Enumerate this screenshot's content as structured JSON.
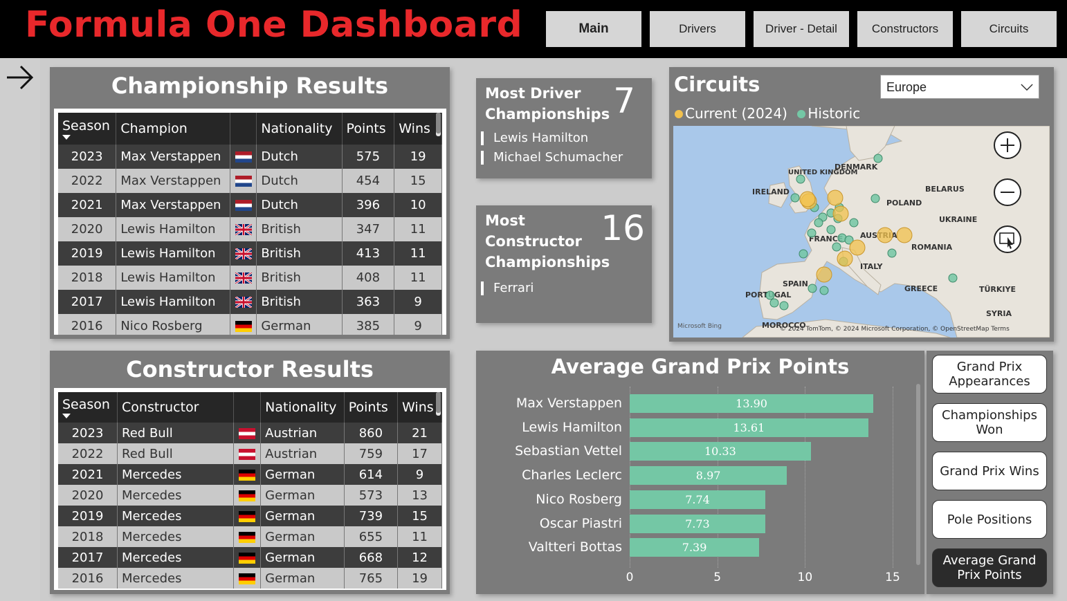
{
  "header": {
    "title": "Formula One Dashboard",
    "nav": [
      "Main",
      "Drivers",
      "Driver - Detail",
      "Constructors",
      "Circuits"
    ],
    "active_nav": "Main"
  },
  "championship": {
    "title": "Championship Results",
    "columns": [
      "Season",
      "Champion",
      "",
      "Nationality",
      "Points",
      "Wins"
    ],
    "rows": [
      {
        "season": "2023",
        "name": "Max Verstappen",
        "flag": "nl",
        "nationality": "Dutch",
        "points": "575",
        "wins": "19"
      },
      {
        "season": "2022",
        "name": "Max Verstappen",
        "flag": "nl",
        "nationality": "Dutch",
        "points": "454",
        "wins": "15"
      },
      {
        "season": "2021",
        "name": "Max Verstappen",
        "flag": "nl",
        "nationality": "Dutch",
        "points": "396",
        "wins": "10"
      },
      {
        "season": "2020",
        "name": "Lewis Hamilton",
        "flag": "gb",
        "nationality": "British",
        "points": "347",
        "wins": "11"
      },
      {
        "season": "2019",
        "name": "Lewis Hamilton",
        "flag": "gb",
        "nationality": "British",
        "points": "413",
        "wins": "11"
      },
      {
        "season": "2018",
        "name": "Lewis Hamilton",
        "flag": "gb",
        "nationality": "British",
        "points": "408",
        "wins": "11"
      },
      {
        "season": "2017",
        "name": "Lewis Hamilton",
        "flag": "gb",
        "nationality": "British",
        "points": "363",
        "wins": "9"
      },
      {
        "season": "2016",
        "name": "Nico Rosberg",
        "flag": "de",
        "nationality": "German",
        "points": "385",
        "wins": "9"
      }
    ]
  },
  "constructor": {
    "title": "Constructor Results",
    "columns": [
      "Season",
      "Constructor",
      "",
      "Nationality",
      "Points",
      "Wins"
    ],
    "rows": [
      {
        "season": "2023",
        "name": "Red Bull",
        "flag": "at",
        "nationality": "Austrian",
        "points": "860",
        "wins": "21"
      },
      {
        "season": "2022",
        "name": "Red Bull",
        "flag": "at",
        "nationality": "Austrian",
        "points": "759",
        "wins": "17"
      },
      {
        "season": "2021",
        "name": "Mercedes",
        "flag": "de",
        "nationality": "German",
        "points": "614",
        "wins": "9"
      },
      {
        "season": "2020",
        "name": "Mercedes",
        "flag": "de",
        "nationality": "German",
        "points": "573",
        "wins": "13"
      },
      {
        "season": "2019",
        "name": "Mercedes",
        "flag": "de",
        "nationality": "German",
        "points": "739",
        "wins": "15"
      },
      {
        "season": "2018",
        "name": "Mercedes",
        "flag": "de",
        "nationality": "German",
        "points": "655",
        "wins": "11"
      },
      {
        "season": "2017",
        "name": "Mercedes",
        "flag": "de",
        "nationality": "German",
        "points": "668",
        "wins": "12"
      },
      {
        "season": "2016",
        "name": "Mercedes",
        "flag": "de",
        "nationality": "German",
        "points": "765",
        "wins": "19"
      }
    ]
  },
  "kpi_driver": {
    "title": "Most Driver Championships",
    "value": "7",
    "items": [
      "Lewis Hamilton",
      "Michael Schumacher"
    ]
  },
  "kpi_constructor": {
    "title": "Most Constructor Championships",
    "value": "16",
    "items": [
      "Ferrari"
    ]
  },
  "circuits": {
    "title": "Circuits",
    "region": "Europe",
    "legend_current": "Current (2024)",
    "legend_historic": "Historic",
    "color_current": "#f2c14e",
    "color_historic": "#74c7a5",
    "map_labels": [
      "DENMARK",
      "UNITED KINGDOM",
      "IRELAND",
      "BELARUS",
      "POLAND",
      "UKRAINE",
      "FRANCE",
      "AUSTRIA",
      "ROMANIA",
      "ITALY",
      "SPAIN",
      "PORTUGAL",
      "GREECE",
      "TÜRKIYE",
      "SYRIA",
      "MOROCCO"
    ],
    "attribution": "© 2024 TomTom, © 2024 Microsoft Corporation, © OpenStreetMap  Terms",
    "bing": "Microsoft Bing"
  },
  "avg_points": {
    "title": "Average Grand Prix Points",
    "bar_color": "#74c7a5"
  },
  "chart_data": {
    "type": "bar",
    "orientation": "horizontal",
    "title": "Average Grand Prix Points",
    "categories": [
      "Max Verstappen",
      "Lewis Hamilton",
      "Sebastian Vettel",
      "Charles Leclerc",
      "Nico Rosberg",
      "Oscar Piastri",
      "Valtteri Bottas"
    ],
    "values": [
      13.9,
      13.61,
      10.33,
      8.97,
      7.74,
      7.73,
      7.39
    ],
    "value_labels": [
      "13.90",
      "13.61",
      "10.33",
      "8.97",
      "7.74",
      "7.73",
      "7.39"
    ],
    "xlim": [
      0,
      15
    ],
    "xticks": [
      "0",
      "5",
      "10",
      "15"
    ]
  },
  "metrics": {
    "buttons": [
      "Grand Prix Appearances",
      "Championships Won",
      "Grand Prix Wins",
      "Pole Positions",
      "Average Grand Prix Points"
    ],
    "selected": "Average Grand Prix Points"
  }
}
